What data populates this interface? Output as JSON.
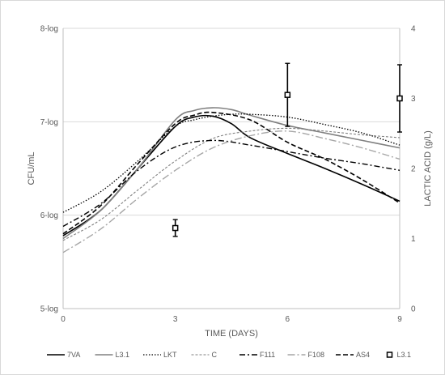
{
  "chart_data": {
    "type": "line",
    "xlabel": "TIME (DAYS)",
    "ylabel_left": "CFU/mL",
    "ylabel_right": "LACTIC ACID  (g/L)",
    "xlim": [
      0,
      9
    ],
    "ylim_left": [
      5,
      8
    ],
    "ylim_right": [
      0,
      4
    ],
    "x_ticks": [
      0,
      3,
      6,
      9
    ],
    "x_tick_labels": [
      "0",
      "3",
      "6",
      "9"
    ],
    "y_left_ticks": [
      5,
      6,
      7,
      8
    ],
    "y_left_tick_labels": [
      "5-log",
      "6-log",
      "7-log",
      "8-log"
    ],
    "y_right_ticks": [
      0,
      1,
      2,
      3,
      4
    ],
    "y_right_tick_labels": [
      "0",
      "1",
      "2",
      "3",
      "4"
    ],
    "grid": "horizontal",
    "legend_position": "bottom",
    "series": [
      {
        "name": "7VA",
        "axis": "left",
        "style": "solid",
        "color": "#000000",
        "width": 1.6,
        "x": [
          0,
          1,
          2,
          3,
          3.5,
          4,
          4.5,
          5,
          6,
          7,
          8,
          9
        ],
        "y": [
          5.78,
          6.05,
          6.5,
          6.95,
          7.05,
          7.06,
          6.98,
          6.83,
          6.66,
          6.5,
          6.33,
          6.15
        ]
      },
      {
        "name": "L3.1",
        "axis": "left",
        "style": "solid",
        "color": "#808080",
        "width": 1.6,
        "x": [
          0,
          1,
          2,
          3,
          3.5,
          4,
          4.5,
          5,
          6,
          7,
          8,
          9
        ],
        "y": [
          5.75,
          6.05,
          6.5,
          7.02,
          7.12,
          7.15,
          7.13,
          7.07,
          6.96,
          6.88,
          6.8,
          6.72
        ]
      },
      {
        "name": "LKT",
        "axis": "left",
        "style": "dotted",
        "color": "#000000",
        "width": 1.3,
        "x": [
          0,
          1,
          2,
          3,
          3.5,
          4,
          4.5,
          5,
          6,
          7,
          8,
          9
        ],
        "y": [
          6.03,
          6.25,
          6.58,
          6.95,
          7.02,
          7.06,
          7.08,
          7.08,
          7.05,
          6.97,
          6.88,
          6.75
        ]
      },
      {
        "name": "C",
        "axis": "left",
        "style": "dashed-thin",
        "color": "#808080",
        "width": 1.1,
        "x": [
          0,
          1,
          2,
          3,
          4,
          5,
          6,
          7,
          8,
          9
        ],
        "y": [
          5.73,
          5.95,
          6.27,
          6.58,
          6.82,
          6.9,
          6.93,
          6.9,
          6.86,
          6.83
        ]
      },
      {
        "name": "F111",
        "axis": "left",
        "style": "dash-dot",
        "color": "#000000",
        "width": 1.4,
        "x": [
          0,
          1,
          2,
          3,
          4,
          5,
          6,
          7,
          8,
          9
        ],
        "y": [
          5.88,
          6.12,
          6.48,
          6.73,
          6.8,
          6.75,
          6.68,
          6.61,
          6.55,
          6.48
        ]
      },
      {
        "name": "F108",
        "axis": "left",
        "style": "dash-dot-long",
        "color": "#a6a6a6",
        "width": 1.4,
        "x": [
          0,
          1,
          2,
          3,
          4,
          5,
          6,
          7,
          8,
          9
        ],
        "y": [
          5.6,
          5.85,
          6.18,
          6.48,
          6.72,
          6.85,
          6.9,
          6.82,
          6.72,
          6.6
        ]
      },
      {
        "name": "AS4",
        "axis": "left",
        "style": "dashed",
        "color": "#000000",
        "width": 1.6,
        "x": [
          0,
          1,
          2,
          3,
          3.5,
          4,
          5,
          6,
          7,
          8,
          9
        ],
        "y": [
          5.8,
          6.1,
          6.55,
          6.98,
          7.07,
          7.1,
          7.02,
          6.78,
          6.6,
          6.38,
          6.13
        ]
      },
      {
        "name": "L3.1",
        "axis": "right",
        "type": "errorbar",
        "marker": "square",
        "color": "#000000",
        "x": [
          3,
          6,
          9
        ],
        "y": [
          1.15,
          3.05,
          3.0
        ],
        "err": [
          0.12,
          0.45,
          0.48
        ]
      }
    ]
  }
}
